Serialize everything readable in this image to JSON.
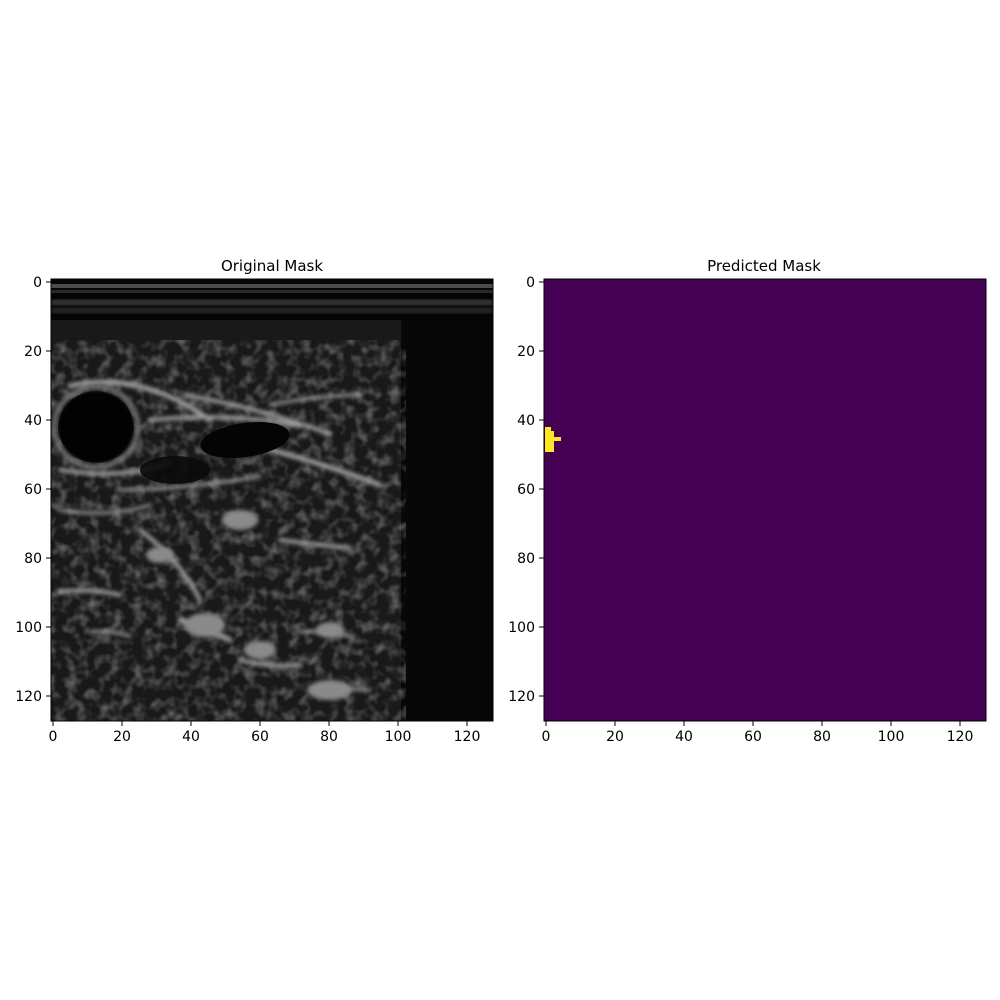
{
  "figure": {
    "panels": [
      {
        "title": "Original Mask",
        "kind": "grayscale ultrasound image",
        "extent": {
          "x": [
            0,
            128
          ],
          "y": [
            0,
            128
          ]
        },
        "x_ticks": [
          "0",
          "20",
          "40",
          "60",
          "80",
          "100",
          "120"
        ],
        "y_ticks": [
          "0",
          "20",
          "40",
          "60",
          "80",
          "100",
          "120"
        ]
      },
      {
        "title": "Predicted Mask",
        "kind": "binary mask",
        "extent": {
          "x": [
            0,
            128
          ],
          "y": [
            0,
            128
          ]
        },
        "x_ticks": [
          "0",
          "20",
          "40",
          "60",
          "80",
          "100",
          "120"
        ],
        "y_ticks": [
          "0",
          "20",
          "40",
          "60",
          "80",
          "100",
          "120"
        ],
        "background_color": "#440154",
        "foreground_color": "#fde725",
        "foreground_region": {
          "x": [
            0,
            5
          ],
          "y": [
            43,
            50
          ]
        }
      }
    ]
  }
}
